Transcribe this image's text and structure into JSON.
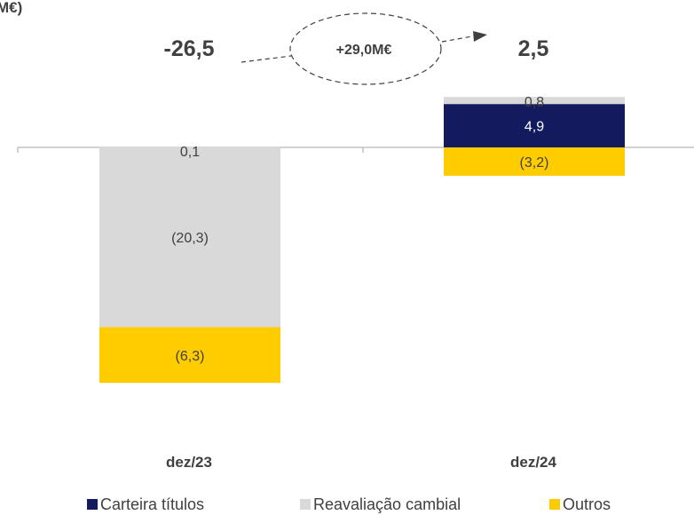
{
  "chart_data": {
    "type": "bar",
    "stacked": true,
    "title": "M€)",
    "categories": [
      "dez/23",
      "dez/24"
    ],
    "series": [
      {
        "name": "Carteira títulos",
        "color": "#141a5e",
        "values": [
          0,
          4.9
        ],
        "labels": [
          "",
          "4,9"
        ]
      },
      {
        "name": "Reavaliação cambial",
        "color": "#d9d9d9",
        "values": [
          -20.3,
          0.8
        ],
        "labels": [
          "(20,3)",
          "0,8"
        ]
      },
      {
        "name": "Outros",
        "color": "#ffcc00",
        "values": [
          -6.3,
          -3.2
        ],
        "labels": [
          "(6,3)",
          "(3,2)"
        ]
      },
      {
        "name": "",
        "color": "#d9d9d9",
        "values": [
          0.1,
          0
        ],
        "labels": [
          "0,1",
          ""
        ]
      }
    ],
    "totals": [
      "-26,5",
      "2,5"
    ],
    "delta_label": "+29,0M€",
    "legend": [
      "Carteira títulos",
      "Reavaliação cambial",
      "Outros"
    ],
    "legend_position": "bottom",
    "ylim": [
      -27.2,
      7.2
    ],
    "grid": false
  }
}
